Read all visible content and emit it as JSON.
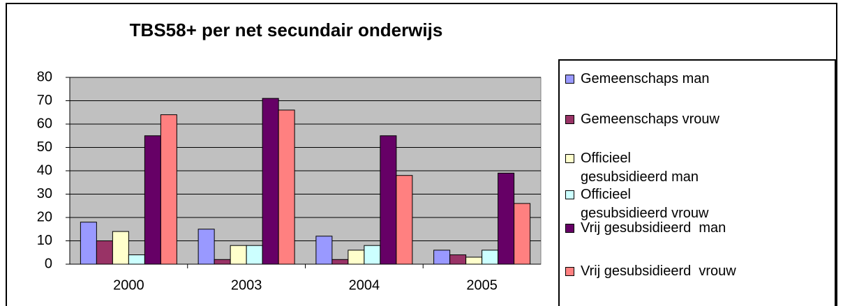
{
  "chart_data": {
    "type": "bar",
    "title": "TBS58+ per net secundair onderwijs",
    "categories": [
      "2000",
      "2003",
      "2004",
      "2005"
    ],
    "series": [
      {
        "name": "Gemeenschaps man",
        "color": "#9999ff",
        "values": [
          18,
          15,
          12,
          6
        ]
      },
      {
        "name": "Gemeenschaps vrouw",
        "color": "#993366",
        "values": [
          10,
          2,
          2,
          4
        ]
      },
      {
        "name": "Officieel gesubsidieerd man",
        "color": "#ffffcc",
        "values": [
          14,
          8,
          6,
          3
        ]
      },
      {
        "name": "Officieel gesubsidieerd vrouw",
        "color": "#ccffff",
        "values": [
          4,
          8,
          8,
          6
        ]
      },
      {
        "name": "Vrij gesubsidieerd  man",
        "color": "#660066",
        "values": [
          55,
          71,
          55,
          39
        ]
      },
      {
        "name": "Vrij gesubsidieerd  vrouw",
        "color": "#ff8080",
        "values": [
          64,
          66,
          38,
          26
        ]
      }
    ],
    "ylim": [
      0,
      80
    ],
    "yticks": [
      0,
      10,
      20,
      30,
      40,
      50,
      60,
      70,
      80
    ],
    "grid": true,
    "legend": "right",
    "plot_background": "#c0c0c0"
  }
}
